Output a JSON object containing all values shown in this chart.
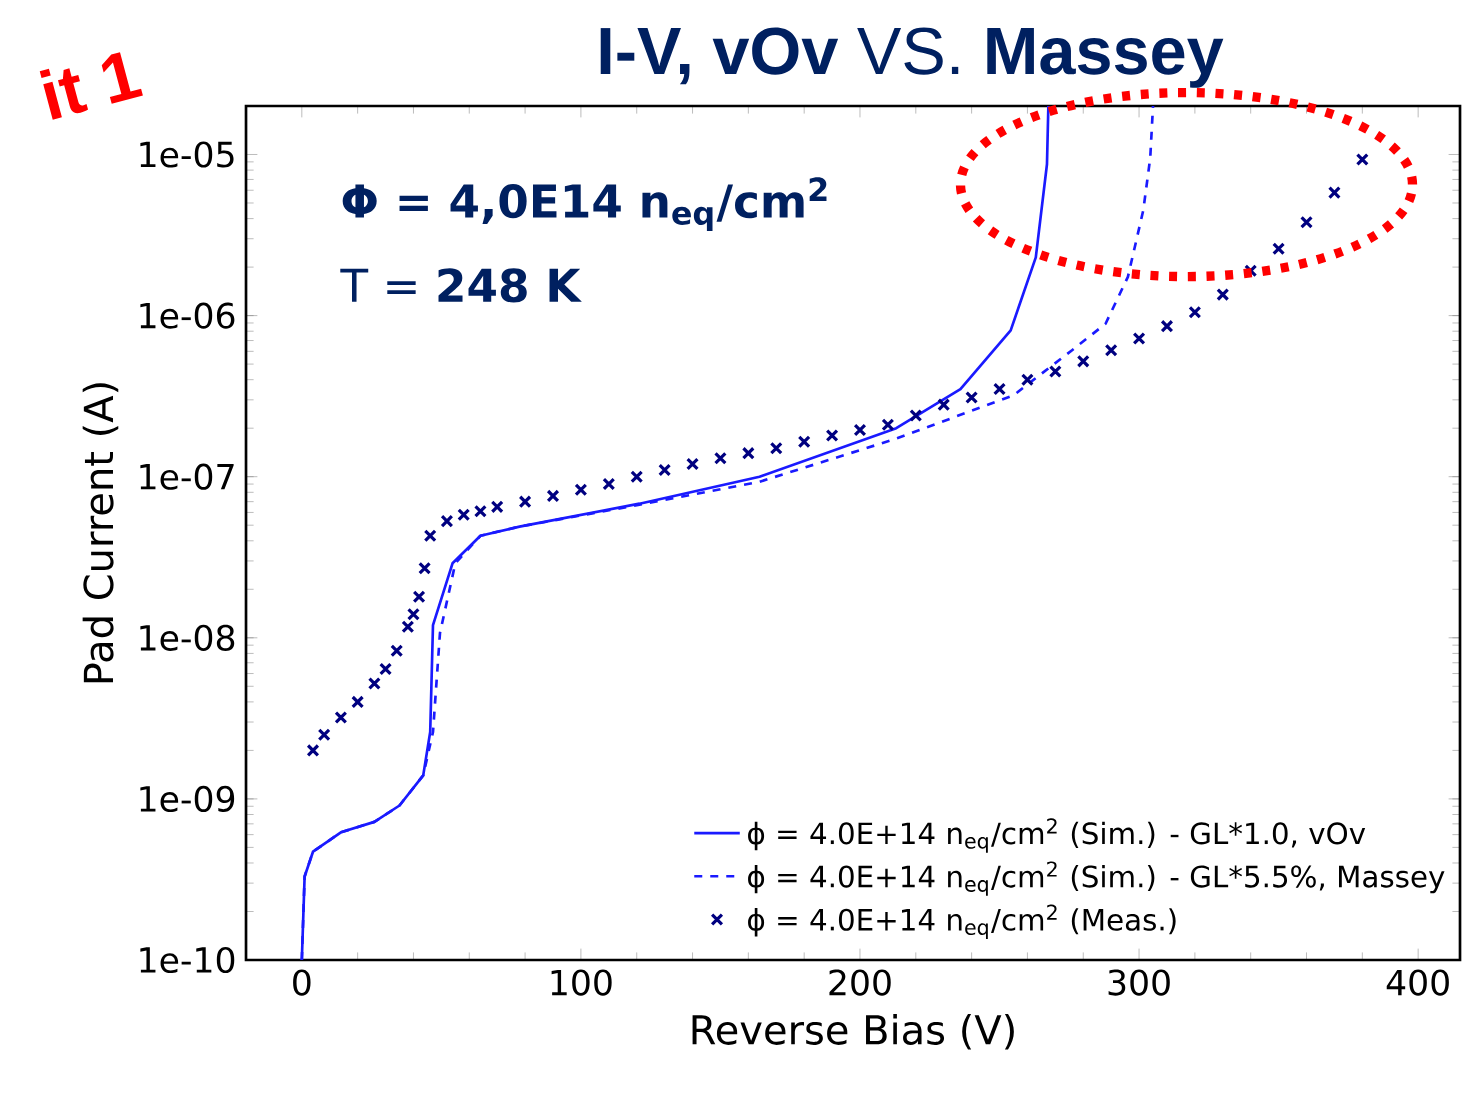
{
  "chart_data": {
    "type": "line",
    "title": "**I-V, vOv** VS. **Massey**",
    "xlabel": "Reverse Bias (V)",
    "ylabel": "Pad Current (A)",
    "xlim": [
      -20,
      415
    ],
    "xticks": [
      0,
      100,
      200,
      300,
      400
    ],
    "ylim": [
      1e-10,
      2e-05
    ],
    "yticks": [
      {
        "value": 1e-10,
        "label": "1e-10"
      },
      {
        "value": 1e-09,
        "label": "1e-09"
      },
      {
        "value": 1e-08,
        "label": "1e-08"
      },
      {
        "value": 1e-07,
        "label": "1e-07"
      },
      {
        "value": 1e-06,
        "label": "1e-06"
      },
      {
        "value": 1e-05,
        "label": "1e-05"
      }
    ],
    "log": "y",
    "legend": "bottom right",
    "annotations": [
      "**Φ = 4,0E14 n$_{eq}$/cm$^{2}$**",
      "T = **248 K**",
      "it 1"
    ],
    "series": [
      {
        "name": "ϕ = 4.0E+14 n$_{eq}$/cm$^{2}$ (Sim.) - GL*1.0, vOv",
        "type": "line",
        "line_style": "solid",
        "marker": "none",
        "color": "#1a1aff",
        "x": [
          0,
          1,
          4,
          14,
          26,
          35,
          43.5,
          46,
          47,
          54,
          64,
          78,
          121,
          164,
          213,
          236,
          254,
          263,
          267,
          267.5
        ],
        "values": [
          1e-10,
          3.3e-10,
          4.7e-10,
          6.2e-10,
          7.2e-10,
          9.1e-10,
          1.4e-09,
          2.6e-09,
          1.2e-08,
          2.9e-08,
          4.3e-08,
          4.9e-08,
          6.8e-08,
          1e-07,
          2e-07,
          3.5e-07,
          8.1e-07,
          2.3e-06,
          8.7e-06,
          2e-05
        ]
      },
      {
        "name": "ϕ = 4.0E+14 n$_{eq}$/cm$^{2}$ (Sim.) - GL*5.5%, Massey",
        "type": "line",
        "line_style": "dashed",
        "marker": "none",
        "color": "#1a1aff",
        "x": [
          0,
          1,
          4,
          14,
          26,
          35,
          43.5,
          47,
          49.5,
          55,
          64,
          78,
          121,
          164,
          212,
          255,
          276,
          288,
          296,
          301.5,
          304,
          305
        ],
        "values": [
          1e-10,
          3.3e-10,
          4.7e-10,
          6.2e-10,
          7.2e-10,
          9.1e-10,
          1.4e-09,
          2.6e-09,
          1.07e-08,
          2.9e-08,
          4.3e-08,
          4.9e-08,
          6.7e-08,
          9.3e-08,
          1.7e-07,
          3.2e-07,
          6.1e-07,
          8.9e-07,
          1.74e-06,
          4.5e-06,
          9.5e-06,
          2e-05
        ]
      },
      {
        "name": "ϕ = 4.0E+14 n$_{eq}$/cm$^{2}$ (Meas.)",
        "type": "scatter",
        "marker": "cross",
        "color": "#000080",
        "x": [
          4,
          8,
          14,
          20,
          26,
          30,
          34,
          38,
          40,
          42,
          44,
          46,
          52,
          58,
          64,
          70,
          80,
          90,
          100,
          110,
          120,
          130,
          140,
          150,
          160,
          170,
          180,
          190,
          200,
          210,
          220,
          230,
          240,
          250,
          260,
          270,
          280,
          290,
          300,
          310,
          320,
          330,
          340,
          350,
          360,
          370,
          380
        ],
        "values": [
          2e-09,
          2.5e-09,
          3.2e-09,
          4e-09,
          5.2e-09,
          6.4e-09,
          8.3e-09,
          1.17e-08,
          1.4e-08,
          1.8e-08,
          2.7e-08,
          4.3e-08,
          5.3e-08,
          5.8e-08,
          6.1e-08,
          6.5e-08,
          7e-08,
          7.6e-08,
          8.3e-08,
          9e-08,
          1e-07,
          1.1e-07,
          1.2e-07,
          1.3e-07,
          1.4e-07,
          1.5e-07,
          1.65e-07,
          1.8e-07,
          1.95e-07,
          2.1e-07,
          2.4e-07,
          2.8e-07,
          3.1e-07,
          3.5e-07,
          4e-07,
          4.5e-07,
          5.2e-07,
          6.1e-07,
          7.2e-07,
          8.6e-07,
          1.05e-06,
          1.35e-06,
          1.9e-06,
          2.6e-06,
          3.8e-06,
          5.8e-06,
          9.3e-06
        ]
      }
    ]
  }
}
